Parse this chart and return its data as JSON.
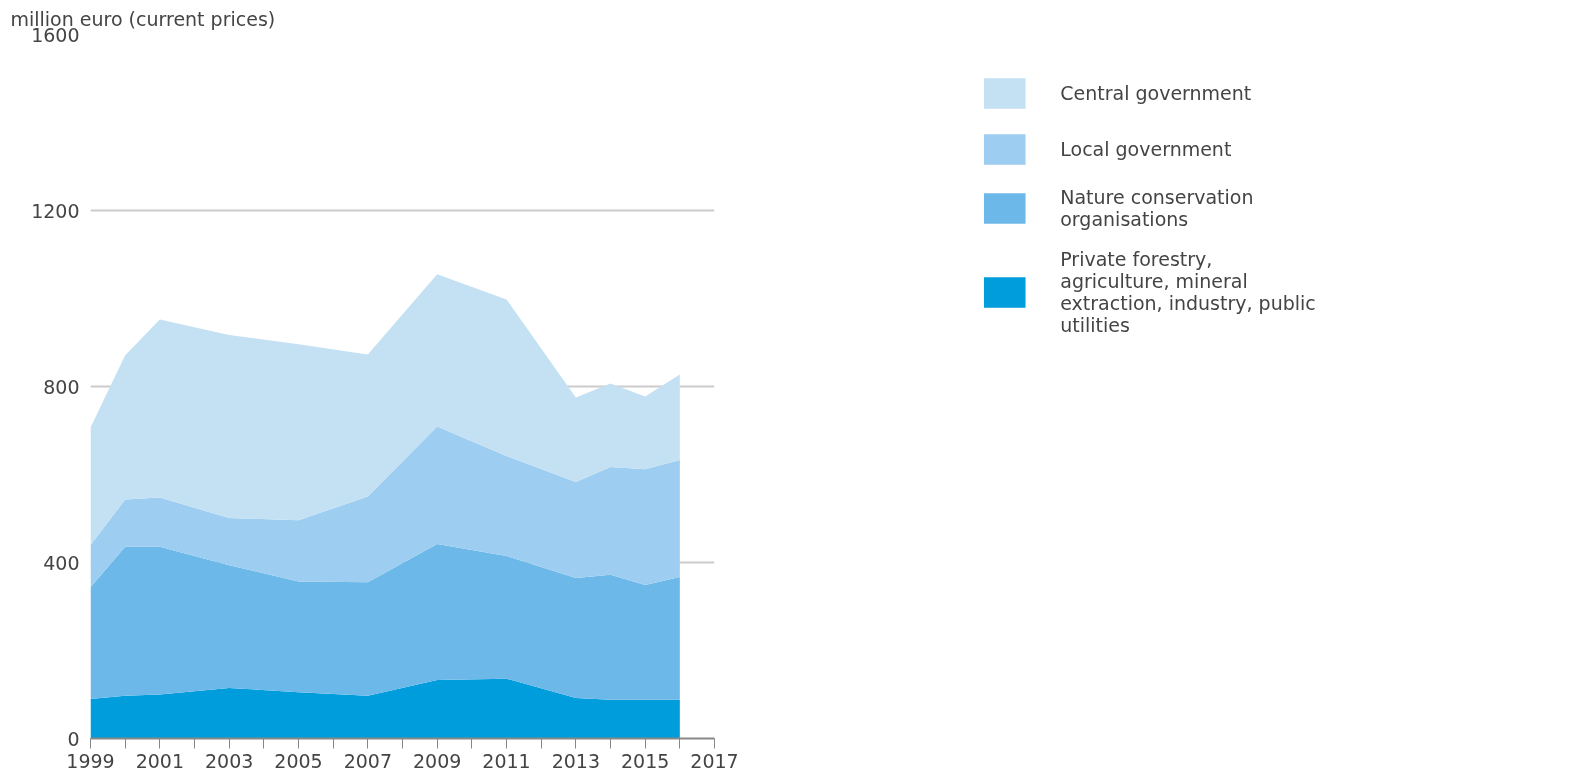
{
  "chart_data": {
    "type": "area",
    "stacked": true,
    "ylabel": "million euro (current prices)",
    "x": [
      1999,
      2000,
      2001,
      2003,
      2005,
      2007,
      2009,
      2011,
      2013,
      2014,
      2015,
      2016
    ],
    "series": [
      {
        "name": "Private forestry, agriculture, mineral extraction, industry, public utilities",
        "color": "#009ddc",
        "values": [
          90,
          97,
          100,
          115,
          105,
          97,
          133,
          136,
          92,
          88,
          88,
          88
        ]
      },
      {
        "name": "Nature conservation organisations",
        "color": "#6cb8e8",
        "values": [
          254,
          339,
          336,
          279,
          252,
          258,
          309,
          279,
          273,
          284,
          261,
          279
        ]
      },
      {
        "name": "Local government",
        "color": "#9dcdf0",
        "values": [
          96,
          107,
          112,
          107,
          139,
          195,
          267,
          227,
          218,
          245,
          263,
          266
        ]
      },
      {
        "name": "Central government",
        "color": "#c4e1f4",
        "values": [
          267,
          328,
          404,
          416,
          400,
          323,
          346,
          356,
          192,
          190,
          165,
          194
        ]
      }
    ],
    "xlim": [
      1999,
      2017
    ],
    "xticks": [
      1999,
      {
        "value": 2000,
        "label": null
      },
      2001,
      {
        "value": 2002,
        "label": null
      },
      2003,
      {
        "value": 2004,
        "label": null
      },
      2005,
      {
        "value": 2006,
        "label": null
      },
      2007,
      {
        "value": 2008,
        "label": null
      },
      2009,
      {
        "value": 2010,
        "label": null
      },
      2011,
      {
        "value": 2012,
        "label": null
      },
      2013,
      {
        "value": 2014,
        "label": null
      },
      2015,
      {
        "value": 2016,
        "label": null
      },
      2017
    ],
    "ylim": [
      0,
      1600
    ],
    "yticks": [
      0,
      400,
      800,
      1200,
      1600
    ],
    "grid": "y",
    "legend": "right"
  }
}
